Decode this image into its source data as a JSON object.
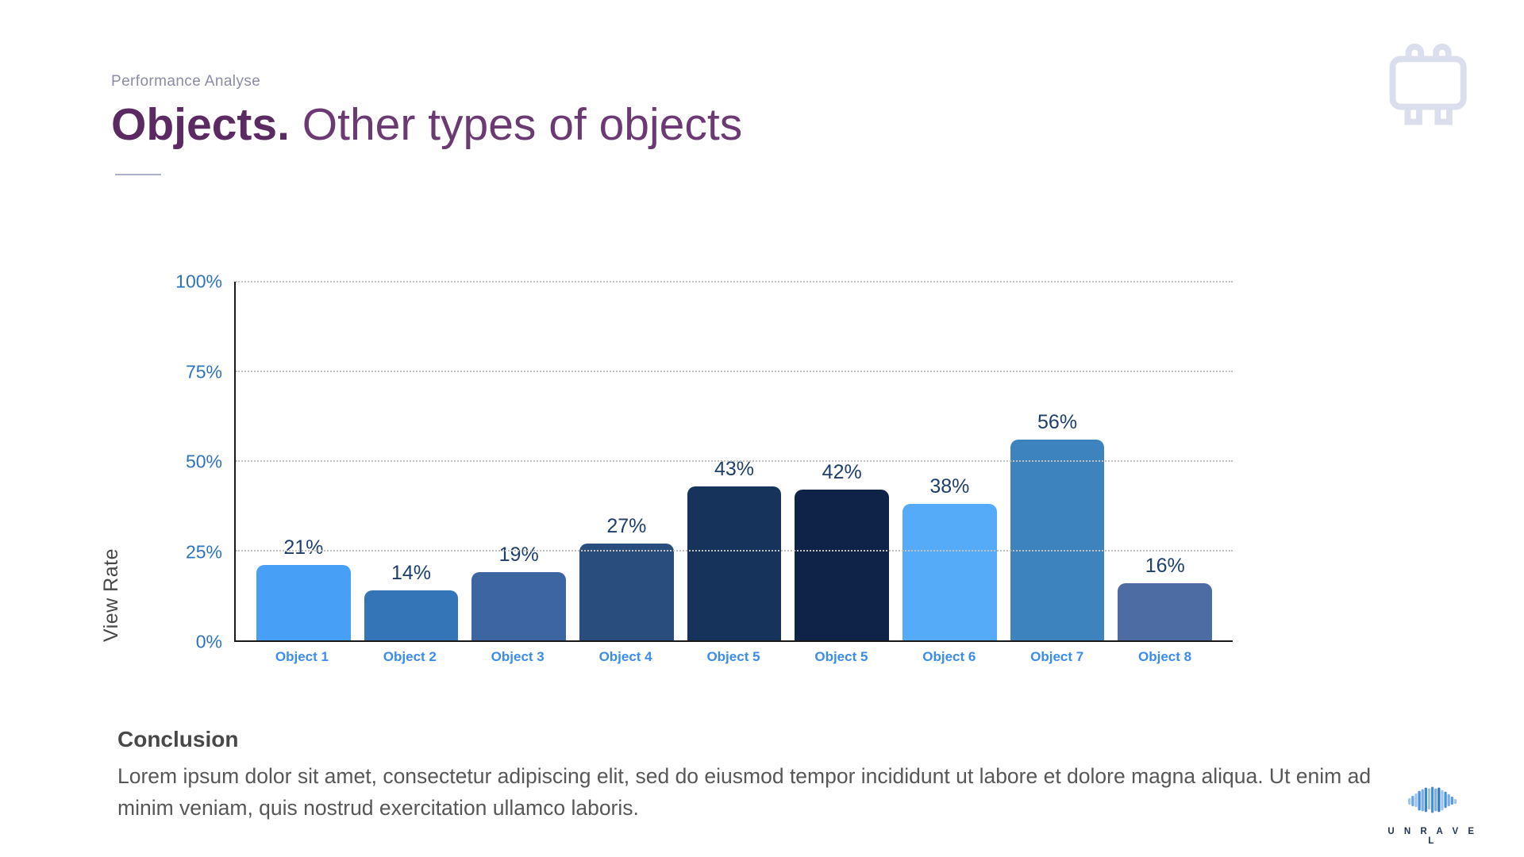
{
  "slide": {
    "eyebrow": "Performance Analyse",
    "title_bold": "Objects.",
    "title_light": " Other types of objects",
    "conclusion_heading": "Conclusion",
    "conclusion_body": "Lorem ipsum dolor sit amet, consectetur adipiscing elit, sed do eiusmod tempor incididunt ut labore et dolore magna aliqua. Ut enim ad minim veniam, quis nostrud exercitation ullamco laboris.",
    "logo_text": "U N R A V E L"
  },
  "icons": {
    "header_icon": "whiteboard-icon",
    "logo_icon": "brain-bars-icon"
  },
  "colors": {
    "title_purple": "#5B2A62",
    "tick_blue": "#2E73BF",
    "xlabel_blue": "#3B8CF0",
    "value_navy": "#1E3F6D",
    "axis_black": "#1A1A1A",
    "grid_gray": "#C2C2C2"
  },
  "chart_data": {
    "type": "bar",
    "title": "",
    "xlabel": "",
    "ylabel": "View Rate",
    "ylim": [
      0,
      100
    ],
    "grid": "dotted horizontal",
    "legend": "none",
    "yticks": [
      {
        "label": "100%",
        "value": 100
      },
      {
        "label": "75%",
        "value": 75
      },
      {
        "label": "50%",
        "value": 50
      },
      {
        "label": "25%",
        "value": 25
      },
      {
        "label": "0%",
        "value": 0
      }
    ],
    "categories": [
      "Object 1",
      "Object 2",
      "Object 3",
      "Object 4",
      "Object 5",
      "Object 5",
      "Object 6",
      "Object 7",
      "Object 8"
    ],
    "values": [
      21,
      14,
      19,
      27,
      43,
      42,
      38,
      56,
      16
    ],
    "value_labels": [
      "21%",
      "14%",
      "19%",
      "27%",
      "43%",
      "42%",
      "38%",
      "56%",
      "16%"
    ],
    "bar_colors": [
      "#47A0F5",
      "#3375B6",
      "#3D65A1",
      "#294D7D",
      "#16335C",
      "#0E2347",
      "#56ABF8",
      "#3D83BE",
      "#4C6CA3"
    ]
  }
}
